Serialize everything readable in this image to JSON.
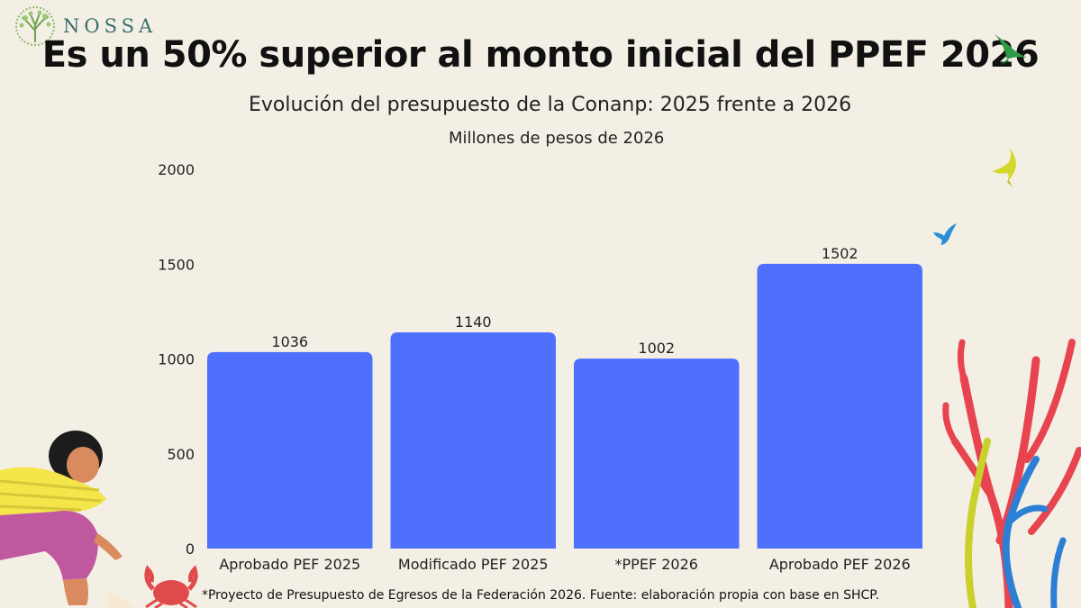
{
  "logo": {
    "text": "NOSSA",
    "icon": "tree-logo-icon"
  },
  "header": {
    "title": "Es un 50% superior al monto inicial del PPEF 2026",
    "subtitle": "Evolución del presupuesto de la Conanp: 2025 frente a 2026",
    "units": "Millones de pesos de 2026"
  },
  "footnote": "*Proyecto de Presupuesto de Egresos de la Federación 2026. Fuente: elaboración propia con base en SHCP.",
  "colors": {
    "bar": "#4f6ffd",
    "background": "#f3efe5"
  },
  "chart_data": {
    "type": "bar",
    "title": "Evolución del presupuesto de la Conanp: 2025 frente a 2026",
    "ylabel": "Millones de pesos de 2026",
    "xlabel": "",
    "categories": [
      "Aprobado PEF 2025",
      "Modificado PEF 2025",
      "*PPEF 2026",
      "Aprobado PEF 2026"
    ],
    "values": [
      1036,
      1140,
      1002,
      1502
    ],
    "ylim": [
      0,
      2000
    ],
    "yticks": [
      0,
      500,
      1000,
      1500,
      2000
    ],
    "grid": false,
    "data_labels": true
  }
}
